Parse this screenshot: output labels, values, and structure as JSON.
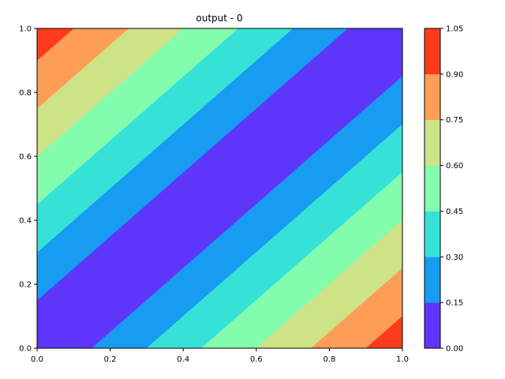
{
  "chart_data": {
    "type": "heatmap",
    "subtype": "filled-contour",
    "title": "output - 0",
    "xlabel": "",
    "ylabel": "",
    "xlim": [
      0.0,
      1.0
    ],
    "ylim": [
      0.0,
      1.0
    ],
    "x_ticks": [
      "0.0",
      "0.2",
      "0.4",
      "0.6",
      "0.8",
      "1.0"
    ],
    "y_ticks": [
      "0.0",
      "0.2",
      "0.4",
      "0.6",
      "0.8",
      "1.0"
    ],
    "function": "|x - y|",
    "levels": [
      0.0,
      0.15,
      0.3,
      0.45,
      0.6,
      0.75,
      0.9,
      1.05
    ],
    "level_colors": [
      "#5e36fb",
      "#169cf0",
      "#36e2d8",
      "#84fcad",
      "#cde386",
      "#fe9d55",
      "#ff3b1e"
    ],
    "colorbar": {
      "position": "right",
      "tick_labels": [
        "0.00",
        "0.15",
        "0.30",
        "0.45",
        "0.60",
        "0.75",
        "0.90",
        "1.05"
      ]
    },
    "grid": false
  }
}
